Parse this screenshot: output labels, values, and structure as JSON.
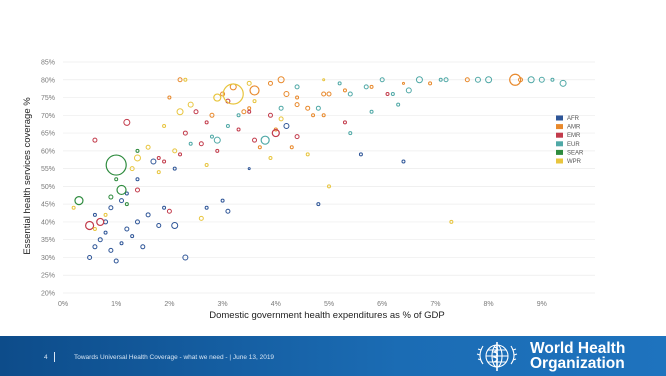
{
  "chart_data": {
    "type": "scatter",
    "title": "",
    "xlabel": "Domestic government health expenditures as % of GDP",
    "ylabel": "Essential health services coverage %",
    "xlim": [
      0,
      10
    ],
    "ylim": [
      20,
      85
    ],
    "x_ticks": [
      "0%",
      "1%",
      "2%",
      "3%",
      "4%",
      "5%",
      "6%",
      "7%",
      "8%",
      "9%"
    ],
    "y_ticks": [
      "20%",
      "25%",
      "30%",
      "35%",
      "40%",
      "45%",
      "50%",
      "55%",
      "60%",
      "65%",
      "70%",
      "75%",
      "80%",
      "85%"
    ],
    "grid": "horizontal",
    "legend_position": "right",
    "series": [
      {
        "name": "AFR",
        "color": "#2e5597",
        "points": [
          [
            0.5,
            30,
            2
          ],
          [
            0.6,
            33,
            2
          ],
          [
            0.7,
            35,
            2
          ],
          [
            0.8,
            37,
            1.5
          ],
          [
            0.9,
            32,
            2
          ],
          [
            1.0,
            29,
            2
          ],
          [
            1.1,
            34,
            1.5
          ],
          [
            1.2,
            38,
            2
          ],
          [
            1.3,
            36,
            1.5
          ],
          [
            1.4,
            40,
            2
          ],
          [
            1.5,
            33,
            2
          ],
          [
            1.6,
            42,
            2
          ],
          [
            0.9,
            44,
            2
          ],
          [
            1.1,
            46,
            2
          ],
          [
            1.8,
            39,
            2
          ],
          [
            1.9,
            44,
            1.5
          ],
          [
            2.1,
            39,
            3
          ],
          [
            2.3,
            30,
            2.5
          ],
          [
            2.7,
            44,
            1.5
          ],
          [
            3.1,
            43,
            2
          ],
          [
            3.0,
            46,
            1.5
          ],
          [
            4.2,
            67,
            2.5
          ],
          [
            0.8,
            40,
            2
          ],
          [
            1.2,
            48,
            1.5
          ],
          [
            1.7,
            57,
            2.5
          ],
          [
            2.1,
            55,
            1.5
          ],
          [
            4.8,
            45,
            1.5
          ],
          [
            5.6,
            59,
            1.5
          ],
          [
            3.5,
            55,
            1
          ],
          [
            6.4,
            57,
            1.5
          ],
          [
            1.4,
            52,
            1.5
          ],
          [
            0.6,
            42,
            1.5
          ]
        ]
      },
      {
        "name": "AMR",
        "color": "#e8892c",
        "points": [
          [
            2.2,
            80,
            2
          ],
          [
            3.0,
            76,
            2
          ],
          [
            3.2,
            78,
            3
          ],
          [
            3.4,
            71,
            2
          ],
          [
            3.6,
            77,
            4.5
          ],
          [
            4.1,
            80,
            3
          ],
          [
            4.2,
            76,
            2.5
          ],
          [
            4.4,
            73,
            2
          ],
          [
            4.6,
            72,
            2
          ],
          [
            4.9,
            76,
            2
          ],
          [
            5.0,
            76,
            2
          ],
          [
            3.9,
            79,
            2
          ],
          [
            4.4,
            75,
            1.5
          ],
          [
            5.3,
            77,
            1.5
          ],
          [
            7.6,
            80,
            2
          ],
          [
            8.5,
            80,
            5.5
          ],
          [
            8.6,
            80,
            2
          ],
          [
            4.0,
            66,
            1.5
          ],
          [
            2.8,
            70,
            2
          ],
          [
            3.5,
            72,
            1.5
          ],
          [
            4.7,
            70,
            1.5
          ],
          [
            4.9,
            70,
            1.5
          ],
          [
            5.8,
            78,
            1.5
          ],
          [
            4.3,
            61,
            1.5
          ],
          [
            2.0,
            75,
            1.5
          ],
          [
            3.7,
            61,
            1.5
          ],
          [
            6.4,
            79,
            1
          ],
          [
            6.9,
            79,
            1.5
          ]
        ]
      },
      {
        "name": "EMR",
        "color": "#c23b4b",
        "points": [
          [
            0.5,
            39,
            4
          ],
          [
            0.7,
            40,
            3.5
          ],
          [
            0.6,
            63,
            2
          ],
          [
            1.2,
            68,
            3
          ],
          [
            1.4,
            49,
            2
          ],
          [
            1.8,
            58,
            1.5
          ],
          [
            2.0,
            43,
            2
          ],
          [
            2.3,
            65,
            2
          ],
          [
            2.5,
            71,
            2
          ],
          [
            2.6,
            62,
            2
          ],
          [
            3.1,
            74,
            2
          ],
          [
            3.6,
            63,
            2
          ],
          [
            3.9,
            70,
            2
          ],
          [
            4.0,
            65,
            3.5
          ],
          [
            4.4,
            64,
            2
          ],
          [
            5.3,
            68,
            1.5
          ],
          [
            6.1,
            76,
            1.5
          ],
          [
            2.9,
            60,
            1.5
          ],
          [
            3.3,
            66,
            1.5
          ],
          [
            2.2,
            59,
            1.5
          ],
          [
            1.9,
            57,
            1.5
          ],
          [
            2.7,
            68,
            1.5
          ],
          [
            3.5,
            71,
            1.5
          ]
        ]
      },
      {
        "name": "EUR",
        "color": "#4fa8a6",
        "points": [
          [
            2.4,
            62,
            1.5
          ],
          [
            2.8,
            64,
            1.5
          ],
          [
            3.1,
            67,
            1.5
          ],
          [
            3.3,
            70,
            1.5
          ],
          [
            3.8,
            63,
            4
          ],
          [
            4.1,
            72,
            2
          ],
          [
            4.4,
            78,
            2
          ],
          [
            5.2,
            79,
            1.5
          ],
          [
            5.4,
            76,
            2
          ],
          [
            5.7,
            78,
            2
          ],
          [
            6.0,
            80,
            2
          ],
          [
            6.2,
            76,
            1.5
          ],
          [
            6.5,
            77,
            2.5
          ],
          [
            6.7,
            80,
            3
          ],
          [
            7.2,
            80,
            2
          ],
          [
            7.8,
            80,
            2.5
          ],
          [
            8.0,
            80,
            3
          ],
          [
            8.8,
            80,
            3
          ],
          [
            9.0,
            80,
            2.5
          ],
          [
            9.4,
            79,
            3
          ],
          [
            9.2,
            80,
            1.5
          ],
          [
            2.9,
            63,
            3
          ],
          [
            4.8,
            72,
            2
          ],
          [
            5.4,
            65,
            1.5
          ],
          [
            6.3,
            73,
            1.5
          ],
          [
            7.1,
            80,
            1.5
          ],
          [
            5.8,
            71,
            1.5
          ]
        ]
      },
      {
        "name": "SEAR",
        "color": "#2e8b3e",
        "points": [
          [
            1.0,
            56,
            10
          ],
          [
            1.1,
            49,
            4.5
          ],
          [
            0.3,
            46,
            4
          ],
          [
            1.0,
            52,
            1.5
          ],
          [
            1.4,
            60,
            1.5
          ],
          [
            0.9,
            47,
            2
          ],
          [
            1.2,
            45,
            1.5
          ]
        ]
      },
      {
        "name": "WPR",
        "color": "#e8c53e",
        "points": [
          [
            0.2,
            44,
            1.5
          ],
          [
            0.6,
            38,
            1.5
          ],
          [
            0.8,
            42,
            1.5
          ],
          [
            1.3,
            55,
            2
          ],
          [
            1.4,
            58,
            3
          ],
          [
            1.6,
            61,
            2
          ],
          [
            1.9,
            67,
            1.5
          ],
          [
            2.1,
            60,
            2
          ],
          [
            2.2,
            71,
            3
          ],
          [
            2.4,
            73,
            2.5
          ],
          [
            2.6,
            41,
            2
          ],
          [
            2.9,
            75,
            3.5
          ],
          [
            3.2,
            76,
            10
          ],
          [
            3.5,
            79,
            2
          ],
          [
            3.6,
            74,
            1.5
          ],
          [
            4.1,
            69,
            2
          ],
          [
            4.6,
            59,
            1.5
          ],
          [
            5.0,
            50,
            1.5
          ],
          [
            7.3,
            40,
            1.5
          ],
          [
            4.9,
            80,
            1
          ],
          [
            2.3,
            80,
            1.5
          ],
          [
            1.8,
            54,
            1.5
          ],
          [
            3.9,
            58,
            1.5
          ],
          [
            2.7,
            56,
            1.5
          ]
        ]
      }
    ]
  },
  "footer": {
    "page_number": "4",
    "text": "Towards Universal Health Coverage - what we need -  |  June 13, 2019"
  },
  "logo": {
    "line1": "World Health",
    "line2": "Organization"
  }
}
